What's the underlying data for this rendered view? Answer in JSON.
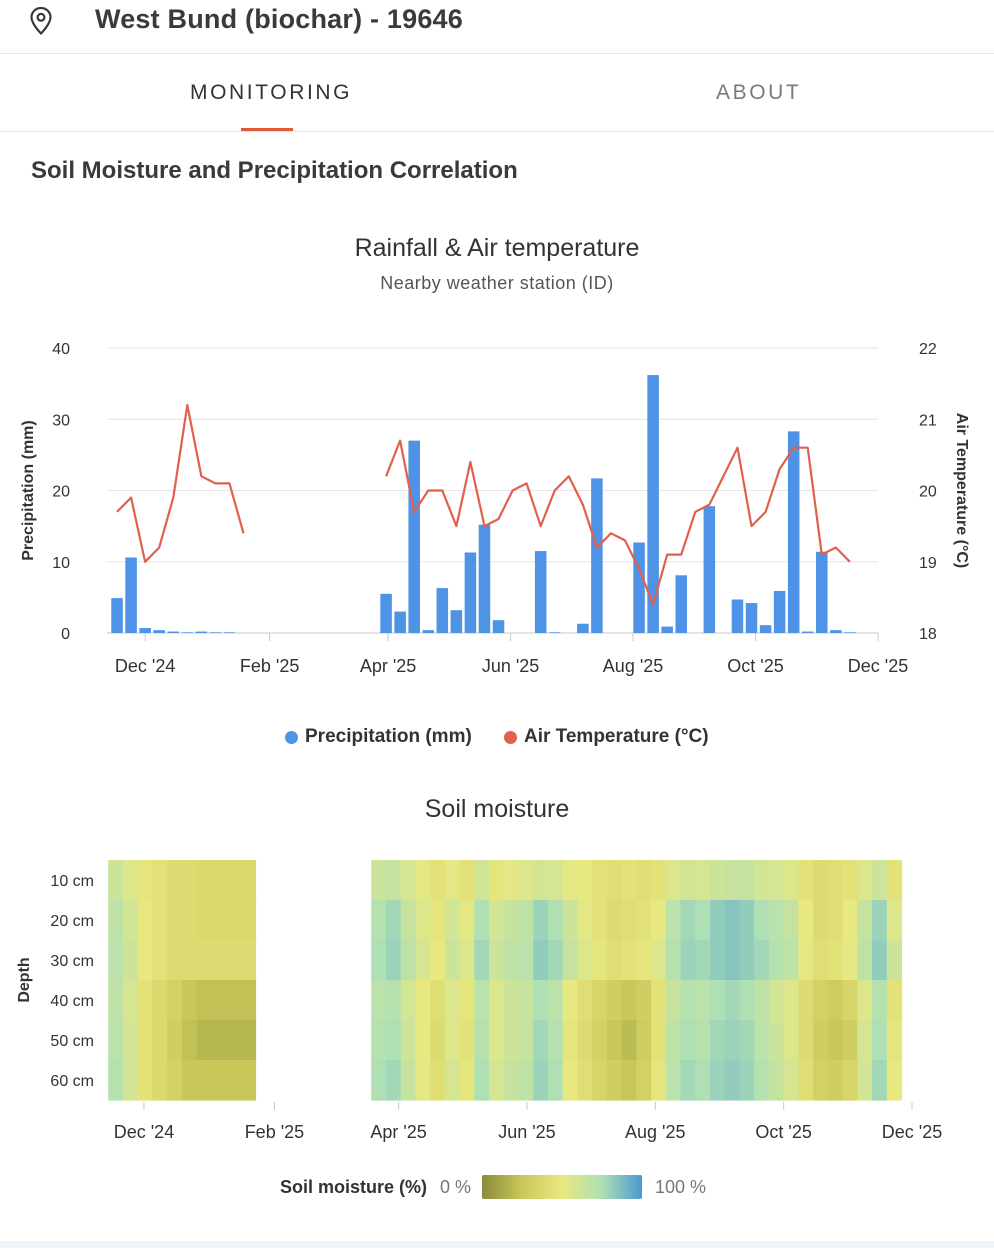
{
  "header": {
    "title": "West Bund (biochar) - 19646",
    "icon": "map-pin-icon"
  },
  "tabs": [
    {
      "label": "MONITORING",
      "active": true
    },
    {
      "label": "ABOUT",
      "active": false
    }
  ],
  "section": {
    "title": "Soil Moisture and Precipitation Correlation"
  },
  "colors": {
    "precipitation": "#4e93e6",
    "temperature": "#e0604d",
    "tab_indicator": "#e05a3a",
    "moisture_scale": [
      "#8a8a3c",
      "#c8c85a",
      "#e8e880",
      "#aee0b4",
      "#4a9ad0"
    ]
  },
  "chart_data": [
    {
      "type": "bar+line",
      "title": "Rainfall & Air temperature",
      "subtitle": "Nearby weather station (ID)",
      "ylabel": "Precipitation (mm)",
      "y2label": "Air Temperature (°C)",
      "ylim": [
        0,
        40
      ],
      "y2lim": [
        18,
        22
      ],
      "yticks": [
        0,
        10,
        20,
        30,
        40
      ],
      "y2ticks": [
        18,
        19,
        20,
        21,
        22
      ],
      "xlim": [
        "2024-11-12",
        "2025-12-01"
      ],
      "xticks": [
        {
          "label": "Dec '24",
          "date": "2024-12-01"
        },
        {
          "label": "Feb '25",
          "date": "2025-02-01"
        },
        {
          "label": "Apr '25",
          "date": "2025-04-01"
        },
        {
          "label": "Jun '25",
          "date": "2025-06-01"
        },
        {
          "label": "Aug '25",
          "date": "2025-08-01"
        },
        {
          "label": "Oct '25",
          "date": "2025-10-01"
        },
        {
          "label": "Dec '25",
          "date": "2025-12-01"
        }
      ],
      "grid": true,
      "legend_position": "bottom",
      "series": [
        {
          "name": "Precipitation (mm)",
          "kind": "bar",
          "points": [
            {
              "x": "2024-11-17",
              "y": 4.9
            },
            {
              "x": "2024-11-24",
              "y": 10.6
            },
            {
              "x": "2024-12-01",
              "y": 0.7
            },
            {
              "x": "2024-12-08",
              "y": 0.4
            },
            {
              "x": "2024-12-15",
              "y": 0.2
            },
            {
              "x": "2024-12-22",
              "y": 0.1
            },
            {
              "x": "2024-12-29",
              "y": 0.2
            },
            {
              "x": "2025-01-05",
              "y": 0.1
            },
            {
              "x": "2025-01-12",
              "y": 0.1
            },
            {
              "x": "2025-03-31",
              "y": 5.5
            },
            {
              "x": "2025-04-07",
              "y": 3.0
            },
            {
              "x": "2025-04-14",
              "y": 27.0
            },
            {
              "x": "2025-04-21",
              "y": 0.4
            },
            {
              "x": "2025-04-28",
              "y": 6.3
            },
            {
              "x": "2025-05-05",
              "y": 3.2
            },
            {
              "x": "2025-05-12",
              "y": 11.3
            },
            {
              "x": "2025-05-19",
              "y": 15.2
            },
            {
              "x": "2025-05-26",
              "y": 1.8
            },
            {
              "x": "2025-06-16",
              "y": 11.5
            },
            {
              "x": "2025-06-23",
              "y": 0.1
            },
            {
              "x": "2025-07-07",
              "y": 1.3
            },
            {
              "x": "2025-07-14",
              "y": 21.7
            },
            {
              "x": "2025-08-04",
              "y": 12.7
            },
            {
              "x": "2025-08-11",
              "y": 36.2
            },
            {
              "x": "2025-08-18",
              "y": 0.9
            },
            {
              "x": "2025-08-25",
              "y": 8.1
            },
            {
              "x": "2025-09-08",
              "y": 17.8
            },
            {
              "x": "2025-09-22",
              "y": 4.7
            },
            {
              "x": "2025-09-29",
              "y": 4.2
            },
            {
              "x": "2025-10-06",
              "y": 1.1
            },
            {
              "x": "2025-10-13",
              "y": 5.9
            },
            {
              "x": "2025-10-20",
              "y": 28.3
            },
            {
              "x": "2025-10-27",
              "y": 0.2
            },
            {
              "x": "2025-11-03",
              "y": 11.4
            },
            {
              "x": "2025-11-10",
              "y": 0.4
            },
            {
              "x": "2025-11-17",
              "y": 0.1
            }
          ]
        },
        {
          "name": "Air Temperature (°C)",
          "kind": "line",
          "axis": "right",
          "segments": [
            [
              {
                "x": "2024-11-17",
                "y": 19.7
              },
              {
                "x": "2024-11-24",
                "y": 19.9
              },
              {
                "x": "2024-12-01",
                "y": 19.0
              },
              {
                "x": "2024-12-08",
                "y": 19.2
              },
              {
                "x": "2024-12-15",
                "y": 19.9
              },
              {
                "x": "2024-12-22",
                "y": 21.2
              },
              {
                "x": "2024-12-29",
                "y": 20.2
              },
              {
                "x": "2025-01-05",
                "y": 20.1
              },
              {
                "x": "2025-01-12",
                "y": 20.1
              },
              {
                "x": "2025-01-19",
                "y": 19.4
              }
            ],
            [
              {
                "x": "2025-03-31",
                "y": 20.2
              },
              {
                "x": "2025-04-07",
                "y": 20.7
              },
              {
                "x": "2025-04-14",
                "y": 19.7
              },
              {
                "x": "2025-04-21",
                "y": 20.0
              },
              {
                "x": "2025-04-28",
                "y": 20.0
              },
              {
                "x": "2025-05-05",
                "y": 19.5
              },
              {
                "x": "2025-05-12",
                "y": 20.4
              },
              {
                "x": "2025-05-19",
                "y": 19.5
              },
              {
                "x": "2025-05-26",
                "y": 19.6
              },
              {
                "x": "2025-06-02",
                "y": 20.0
              },
              {
                "x": "2025-06-09",
                "y": 20.1
              },
              {
                "x": "2025-06-16",
                "y": 19.5
              },
              {
                "x": "2025-06-23",
                "y": 20.0
              },
              {
                "x": "2025-06-30",
                "y": 20.2
              },
              {
                "x": "2025-07-07",
                "y": 19.8
              },
              {
                "x": "2025-07-14",
                "y": 19.2
              },
              {
                "x": "2025-07-21",
                "y": 19.4
              },
              {
                "x": "2025-07-28",
                "y": 19.3
              },
              {
                "x": "2025-08-04",
                "y": 18.9
              },
              {
                "x": "2025-08-11",
                "y": 18.4
              },
              {
                "x": "2025-08-18",
                "y": 19.1
              },
              {
                "x": "2025-08-25",
                "y": 19.1
              },
              {
                "x": "2025-09-01",
                "y": 19.7
              },
              {
                "x": "2025-09-08",
                "y": 19.8
              },
              {
                "x": "2025-09-15",
                "y": 20.2
              },
              {
                "x": "2025-09-22",
                "y": 20.6
              },
              {
                "x": "2025-09-29",
                "y": 19.5
              },
              {
                "x": "2025-10-06",
                "y": 19.7
              },
              {
                "x": "2025-10-13",
                "y": 20.3
              },
              {
                "x": "2025-10-20",
                "y": 20.6
              },
              {
                "x": "2025-10-27",
                "y": 20.6
              },
              {
                "x": "2025-11-03",
                "y": 19.1
              },
              {
                "x": "2025-11-10",
                "y": 19.2
              },
              {
                "x": "2025-11-17",
                "y": 19.0
              }
            ]
          ]
        }
      ]
    },
    {
      "type": "heatmap",
      "title": "Soil moisture",
      "ylabel": "Depth",
      "y_categories": [
        "10 cm",
        "20 cm",
        "30 cm",
        "40 cm",
        "50 cm",
        "60 cm"
      ],
      "xlim": [
        "2024-11-12",
        "2025-12-01"
      ],
      "xticks": [
        {
          "label": "Dec '24",
          "date": "2024-12-01"
        },
        {
          "label": "Feb '25",
          "date": "2025-02-01"
        },
        {
          "label": "Apr '25",
          "date": "2025-04-01"
        },
        {
          "label": "Jun '25",
          "date": "2025-06-01"
        },
        {
          "label": "Aug '25",
          "date": "2025-08-01"
        },
        {
          "label": "Oct '25",
          "date": "2025-10-01"
        },
        {
          "label": "Dec '25",
          "date": "2025-12-01"
        }
      ],
      "value_range": [
        0,
        100
      ],
      "colorbar": {
        "label": "Soil moisture (%)",
        "min_label": "0 %",
        "max_label": "100 %"
      },
      "blocks": [
        {
          "start": "2024-11-14",
          "step_days": 7,
          "rows": [
            [
              62,
              55,
              48,
              45,
              40,
              40,
              38,
              38,
              38,
              38
            ],
            [
              68,
              60,
              50,
              45,
              40,
              40,
              38,
              38,
              38,
              38
            ],
            [
              70,
              62,
              50,
              45,
              40,
              40,
              40,
              40,
              40,
              40
            ],
            [
              68,
              58,
              45,
              38,
              32,
              25,
              22,
              22,
              22,
              22
            ],
            [
              70,
              60,
              45,
              38,
              30,
              22,
              18,
              18,
              18,
              18
            ],
            [
              72,
              60,
              45,
              38,
              32,
              25,
              25,
              25,
              25,
              25
            ]
          ]
        },
        {
          "start": "2025-03-19",
          "step_days": 7,
          "rows": [
            [
              62,
              65,
              58,
              52,
              45,
              52,
              45,
              60,
              48,
              52,
              55,
              60,
              58,
              52,
              50,
              45,
              42,
              45,
              42,
              45,
              55,
              60,
              58,
              62,
              65,
              65,
              60,
              58,
              55,
              45,
              40,
              42,
              45,
              55,
              62,
              45
            ],
            [
              72,
              78,
              65,
              55,
              48,
              60,
              52,
              75,
              60,
              65,
              68,
              80,
              75,
              62,
              52,
              45,
              40,
              42,
              45,
              50,
              70,
              78,
              75,
              82,
              85,
              82,
              75,
              70,
              65,
              50,
              40,
              42,
              50,
              65,
              80,
              55
            ],
            [
              75,
              80,
              68,
              58,
              50,
              62,
              55,
              78,
              62,
              68,
              70,
              82,
              78,
              65,
              55,
              48,
              42,
              45,
              48,
              55,
              72,
              80,
              78,
              82,
              85,
              82,
              78,
              72,
              68,
              52,
              42,
              45,
              52,
              68,
              82,
              62
            ],
            [
              70,
              72,
              60,
              50,
              42,
              55,
              48,
              70,
              55,
              62,
              65,
              75,
              70,
              50,
              42,
              35,
              30,
              25,
              30,
              45,
              65,
              72,
              70,
              75,
              78,
              75,
              68,
              60,
              55,
              40,
              32,
              28,
              35,
              55,
              72,
              45
            ],
            [
              72,
              75,
              62,
              50,
              40,
              55,
              45,
              72,
              55,
              62,
              65,
              78,
              72,
              48,
              40,
              32,
              25,
              20,
              28,
              45,
              68,
              75,
              72,
              78,
              80,
              78,
              70,
              62,
              55,
              40,
              30,
              25,
              30,
              58,
              75,
              48
            ],
            [
              75,
              78,
              65,
              52,
              42,
              58,
              48,
              75,
              58,
              65,
              68,
              80,
              75,
              50,
              42,
              35,
              30,
              25,
              32,
              48,
              70,
              78,
              75,
              80,
              82,
              80,
              72,
              65,
              58,
              42,
              32,
              30,
              35,
              60,
              78,
              50
            ]
          ]
        }
      ]
    }
  ]
}
